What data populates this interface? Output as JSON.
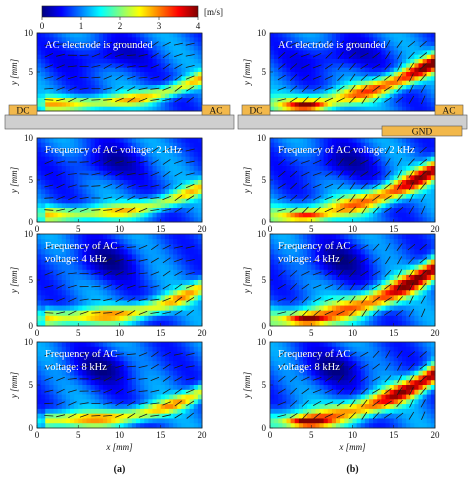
{
  "colorbar": {
    "unit": "[m/s]",
    "ticks": [
      "0",
      "1",
      "2",
      "3",
      "4"
    ],
    "min": 0,
    "max": 4,
    "colormap": [
      "#00007f",
      "#0000ff",
      "#007fff",
      "#00ffff",
      "#7fff7f",
      "#ffff00",
      "#ff7f00",
      "#ff0000",
      "#7f0000"
    ]
  },
  "axes": {
    "ylabel": "y [mm]",
    "xlabel": "x [mm]",
    "x_ticks": [
      "0",
      "5",
      "10",
      "15",
      "20"
    ],
    "y_ticks": [
      "0",
      "5",
      "10"
    ],
    "xlim": [
      0,
      20
    ],
    "ylim": [
      0,
      10
    ]
  },
  "electrodes": {
    "dc": "DC",
    "ac": "AC",
    "gnd": "GND"
  },
  "columns": [
    {
      "caption": "(a)",
      "panels": [
        {
          "annotation_lines": [
            "AC electrode is grounded"
          ],
          "jet_strength": 0.42,
          "hot_spot": 0.0
        },
        {
          "annotation_lines": [
            "Frequency of AC voltage: 2 kHz"
          ],
          "jet_strength": 0.4,
          "hot_spot": 0.0
        },
        {
          "annotation_lines": [
            "Frequency of AC",
            "voltage: 4 kHz"
          ],
          "jet_strength": 0.45,
          "hot_spot": 0.0
        },
        {
          "annotation_lines": [
            "Frequency of AC",
            "voltage: 8 kHz"
          ],
          "jet_strength": 0.45,
          "hot_spot": 0.0
        }
      ]
    },
    {
      "caption": "(b)",
      "panels": [
        {
          "annotation_lines": [
            "AC electrode is grounded"
          ],
          "jet_strength": 0.55,
          "hot_spot": 0.9
        },
        {
          "annotation_lines": [
            "Frequency of AC voltage: 2 kHz"
          ],
          "jet_strength": 0.55,
          "hot_spot": 0.7
        },
        {
          "annotation_lines": [
            "Frequency of AC",
            "voltage: 4 kHz"
          ],
          "jet_strength": 0.6,
          "hot_spot": 1.0
        },
        {
          "annotation_lines": [
            "Frequency of AC",
            "voltage: 8 kHz"
          ],
          "jet_strength": 0.6,
          "hot_spot": 1.0
        }
      ]
    }
  ]
}
